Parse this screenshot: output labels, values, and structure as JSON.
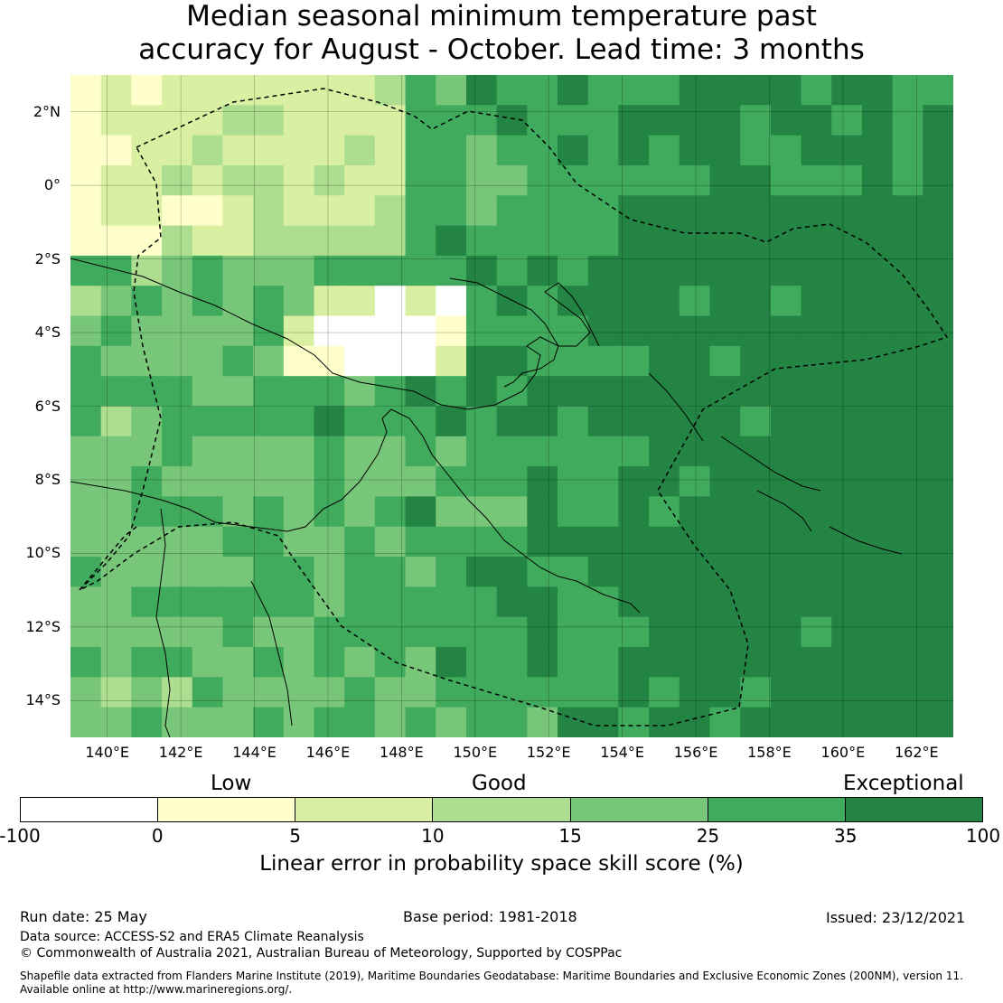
{
  "title": {
    "line1": "Median seasonal minimum temperature past",
    "line2": "accuracy for August - October. Lead time: 3 months"
  },
  "map": {
    "lat_ticks": [
      "2°N",
      "0°",
      "2°S",
      "4°S",
      "6°S",
      "8°S",
      "10°S",
      "12°S",
      "14°S"
    ],
    "lon_ticks": [
      "140°E",
      "142°E",
      "144°E",
      "146°E",
      "148°E",
      "150°E",
      "152°E",
      "154°E",
      "156°E",
      "158°E",
      "160°E",
      "162°E"
    ],
    "extent": {
      "lon_min": 139,
      "lon_max": 163,
      "lat_min": -15,
      "lat_max": 3
    },
    "cell_degrees": 0.83,
    "colors": [
      "#ffffff",
      "#ffffcc",
      "#d9f0a3",
      "#addd8e",
      "#78c679",
      "#41ab5d",
      "#238443"
    ]
  },
  "legend": {
    "category_labels": {
      "low": "Low",
      "good": "Good",
      "exceptional": "Exceptional"
    },
    "ticks": [
      "-100",
      "0",
      "5",
      "10",
      "15",
      "25",
      "35",
      "100"
    ],
    "colors": [
      "#ffffff",
      "#ffffcc",
      "#d9f0a3",
      "#addd8e",
      "#78c679",
      "#41ab5d",
      "#238443"
    ],
    "label": "Linear error in probability space skill score (%)"
  },
  "footer": {
    "run_date": "Run date: 25 May",
    "base_period": "Base period: 1981-2018",
    "issued": "Issued: 23/12/2021",
    "data_source": "Data source: ACCESS-S2 and ERA5 Climate Reanalysis",
    "copyright": "© Commonwealth of Australia 2021, Australian Bureau of Meteorology, Supported by COSPPac",
    "shapefile_line1": "Shapefile data extracted from Flanders Marine Institute (2019), Maritime Boundaries Geodatabase: Maritime Boundaries and Exclusive Economic Zones (200NM), version 11.",
    "shapefile_line2": "Available online at http://www.marineregions.org/."
  }
}
